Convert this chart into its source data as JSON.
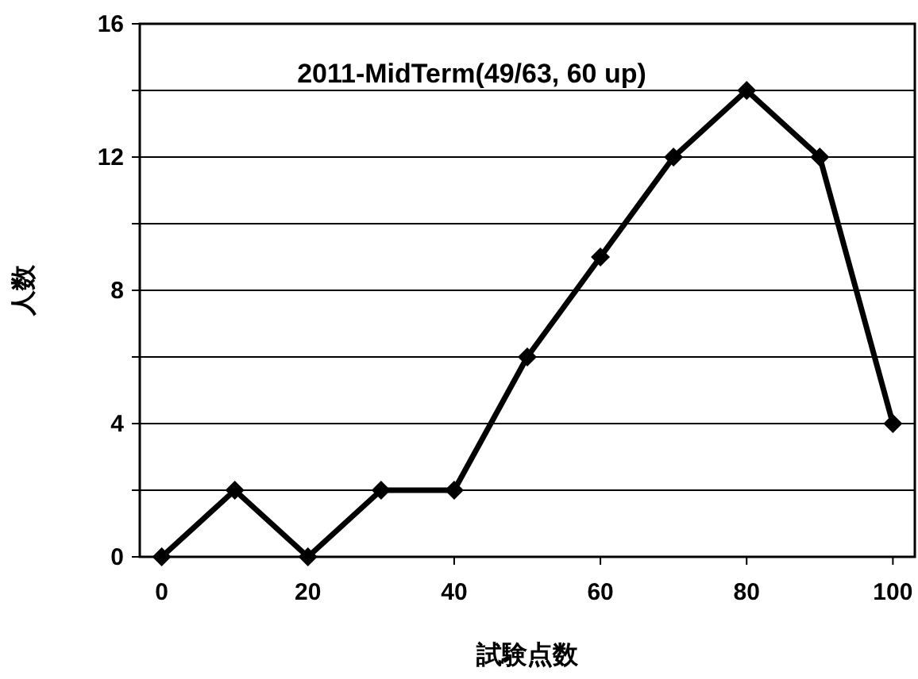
{
  "chart_data": {
    "type": "line",
    "title": "2011-MidTerm(49/63, 60 up)",
    "xlabel": "試験点数",
    "ylabel": "人数",
    "x": [
      0,
      10,
      20,
      30,
      40,
      50,
      60,
      70,
      80,
      90,
      100
    ],
    "series": [
      {
        "color": "#000000",
        "values": [
          0,
          2,
          0,
          2,
          2,
          6,
          9,
          12,
          14,
          12,
          4
        ]
      }
    ],
    "marker": "diamond",
    "line_style": "solid",
    "xlim": [
      -3,
      103
    ],
    "xticks": [
      0,
      20,
      40,
      60,
      80,
      100
    ],
    "ylim": [
      0,
      16
    ],
    "yticks": [
      0,
      {
        "value": 2,
        "label": null
      },
      4,
      {
        "value": 6,
        "label": null
      },
      8,
      {
        "value": 10,
        "label": null
      },
      12,
      {
        "value": 14,
        "label": null
      },
      16
    ],
    "grid": "y"
  }
}
